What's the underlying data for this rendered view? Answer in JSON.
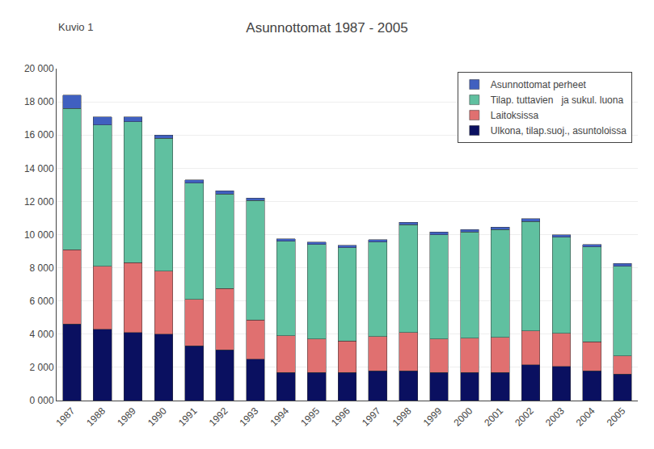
{
  "chart_data": {
    "type": "bar",
    "stacked": true,
    "title": "Asunnottomat 1987 - 2005",
    "annotations": [
      "Kuvio 1"
    ],
    "categories": [
      "1987",
      "1988",
      "1989",
      "1990",
      "1991",
      "1992",
      "1993",
      "1994",
      "1995",
      "1996",
      "1997",
      "1998",
      "1999",
      "2000",
      "2001",
      "2002",
      "2003",
      "2004",
      "2005"
    ],
    "series": [
      {
        "name": "Asunnottomat perheet",
        "color": "#4060c0",
        "values": [
          800,
          500,
          300,
          200,
          200,
          200,
          150,
          150,
          150,
          150,
          150,
          150,
          150,
          150,
          150,
          150,
          150,
          150,
          150
        ]
      },
      {
        "name": "Tilap. tuttavien   ja sukul. luona",
        "color": "#60c0a0",
        "values": [
          8500,
          8500,
          8500,
          8000,
          7000,
          5700,
          7200,
          5700,
          5700,
          5600,
          5700,
          6500,
          6300,
          6400,
          6500,
          6600,
          5800,
          5700,
          5400
        ]
      },
      {
        "name": "Laitoksissa",
        "color": "#e07070",
        "values": [
          4500,
          3800,
          4200,
          3800,
          2800,
          3700,
          2350,
          2200,
          2000,
          1900,
          2050,
          2300,
          2000,
          2050,
          2100,
          2050,
          2000,
          1750,
          1100
        ]
      },
      {
        "name": "Ulkona, tilap.suoj., asuntoloissa",
        "color": "#0a1060",
        "values": [
          4600,
          4300,
          4100,
          4000,
          3300,
          3050,
          2500,
          1700,
          1700,
          1700,
          1800,
          1800,
          1700,
          1700,
          1700,
          2150,
          2050,
          1800,
          1600
        ]
      }
    ],
    "ylim": [
      0,
      20000
    ],
    "yticks": [
      {
        "value": 0,
        "label": "0 000"
      },
      {
        "value": 2000,
        "label": "2 000"
      },
      {
        "value": 4000,
        "label": "4 000"
      },
      {
        "value": 6000,
        "label": "6 000"
      },
      {
        "value": 8000,
        "label": "8 000"
      },
      {
        "value": 10000,
        "label": "10 000"
      },
      {
        "value": 12000,
        "label": "12 000"
      },
      {
        "value": 14000,
        "label": "14 000"
      },
      {
        "value": 16000,
        "label": "16 000"
      },
      {
        "value": 18000,
        "label": "18 000"
      },
      {
        "value": 20000,
        "label": "20 000"
      }
    ],
    "grid": true,
    "legend": "upper right"
  }
}
